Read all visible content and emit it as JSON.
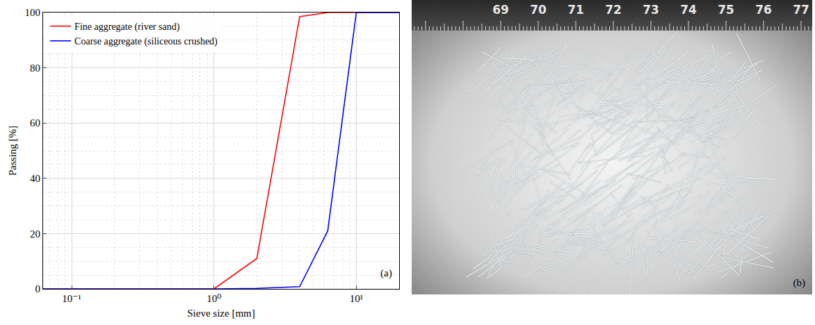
{
  "chart_data": {
    "type": "line",
    "x_label": "Sieve size [mm]",
    "y_label": "Passing [%]",
    "x": [
      0.063,
      0.125,
      0.25,
      0.5,
      1,
      2,
      4,
      6.3,
      10,
      20
    ],
    "series": [
      {
        "name": "Fine aggregate (river sand)",
        "color": "#ff0000",
        "values": [
          0,
          0,
          0,
          0,
          0,
          11,
          98.5,
          100,
          100,
          100
        ]
      },
      {
        "name": "Coarse aggregate (siliceous crushed)",
        "color": "#0000ff",
        "values": [
          0,
          0,
          0,
          0,
          0,
          0.2,
          0.8,
          21,
          100,
          100
        ]
      }
    ],
    "log": "x",
    "xlim": [
      0.063,
      20
    ],
    "xticks": [
      {
        "value": 0.1,
        "label": "10⁻¹"
      },
      {
        "value": 1,
        "label": "10⁰"
      },
      {
        "value": 10,
        "label": "10¹"
      }
    ],
    "ylim": [
      0,
      100
    ],
    "yticks": [
      0,
      20,
      40,
      60,
      80,
      100
    ],
    "grid": true,
    "legend": "upper left",
    "annotations": [
      "(a)"
    ]
  },
  "photo": {
    "ruler_labels": [
      69,
      70,
      71,
      72,
      73,
      74,
      75,
      76,
      77
    ],
    "panel_label": "(b)"
  }
}
